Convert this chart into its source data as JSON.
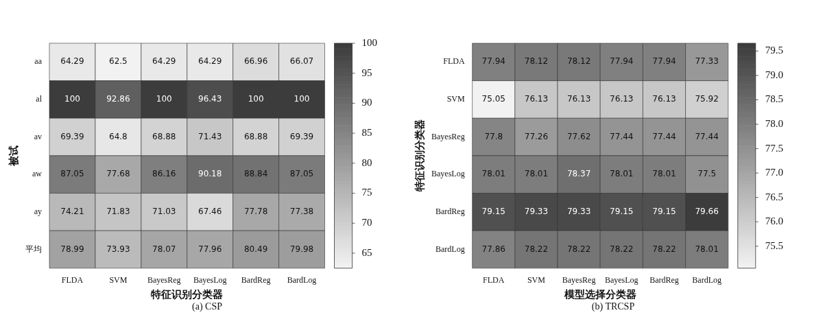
{
  "chart_data": [
    {
      "type": "heatmap",
      "title": "(a) CSP",
      "xlabel": "特征识别分类器",
      "ylabel": "被试",
      "categories": [
        "FLDA",
        "SVM",
        "BayesReg",
        "BayesLog",
        "BardReg",
        "BardLog"
      ],
      "y_categories": [
        "aa",
        "al",
        "av",
        "aw",
        "ay",
        "平均"
      ],
      "cells": [
        [
          64.29,
          62.5,
          64.29,
          64.29,
          66.96,
          66.07
        ],
        [
          100,
          92.86,
          100,
          96.43,
          100,
          100
        ],
        [
          69.39,
          64.8,
          68.88,
          71.43,
          68.88,
          69.39
        ],
        [
          87.05,
          77.68,
          86.16,
          90.18,
          88.84,
          87.05
        ],
        [
          74.21,
          71.83,
          71.03,
          67.46,
          77.78,
          77.38
        ],
        [
          78.99,
          73.93,
          78.07,
          77.96,
          80.49,
          79.98
        ]
      ],
      "data_labels": true,
      "clim": [
        62.5,
        100
      ],
      "cticks": [
        65,
        70,
        75,
        80,
        85,
        90,
        95,
        100
      ]
    },
    {
      "type": "heatmap",
      "title": "(b) TRCSP",
      "xlabel": "模型选择分类器",
      "ylabel": "特征识别分类器",
      "categories": [
        "FLDA",
        "SVM",
        "BayesReg",
        "BayesLog",
        "BardReg",
        "BardLog"
      ],
      "y_categories": [
        "FLDA",
        "SVM",
        "BayesReg",
        "BayesLog",
        "BardReg",
        "BardLog"
      ],
      "cells": [
        [
          77.94,
          78.12,
          78.12,
          77.94,
          77.94,
          77.33
        ],
        [
          75.05,
          76.13,
          76.13,
          76.13,
          76.13,
          75.92
        ],
        [
          77.8,
          77.26,
          77.62,
          77.44,
          77.44,
          77.44
        ],
        [
          78.01,
          78.01,
          78.37,
          78.01,
          78.01,
          77.5
        ],
        [
          79.15,
          79.33,
          79.33,
          79.15,
          79.15,
          79.66
        ],
        [
          77.86,
          78.22,
          78.22,
          78.22,
          78.22,
          78.01
        ]
      ],
      "data_labels": true,
      "clim": [
        75.05,
        79.66
      ],
      "cticks": [
        {
          "value": 75.5,
          "label": "75.5"
        },
        {
          "value": 76,
          "label": "76.0"
        },
        {
          "value": 76.5,
          "label": "76.5"
        },
        {
          "value": 77,
          "label": "77.0"
        },
        {
          "value": 77.5,
          "label": "77.5"
        },
        {
          "value": 78,
          "label": "78.0"
        },
        {
          "value": 78.5,
          "label": "78.5"
        },
        {
          "value": 79,
          "label": "79.0"
        },
        {
          "value": 79.5,
          "label": "79.5"
        }
      ]
    }
  ]
}
